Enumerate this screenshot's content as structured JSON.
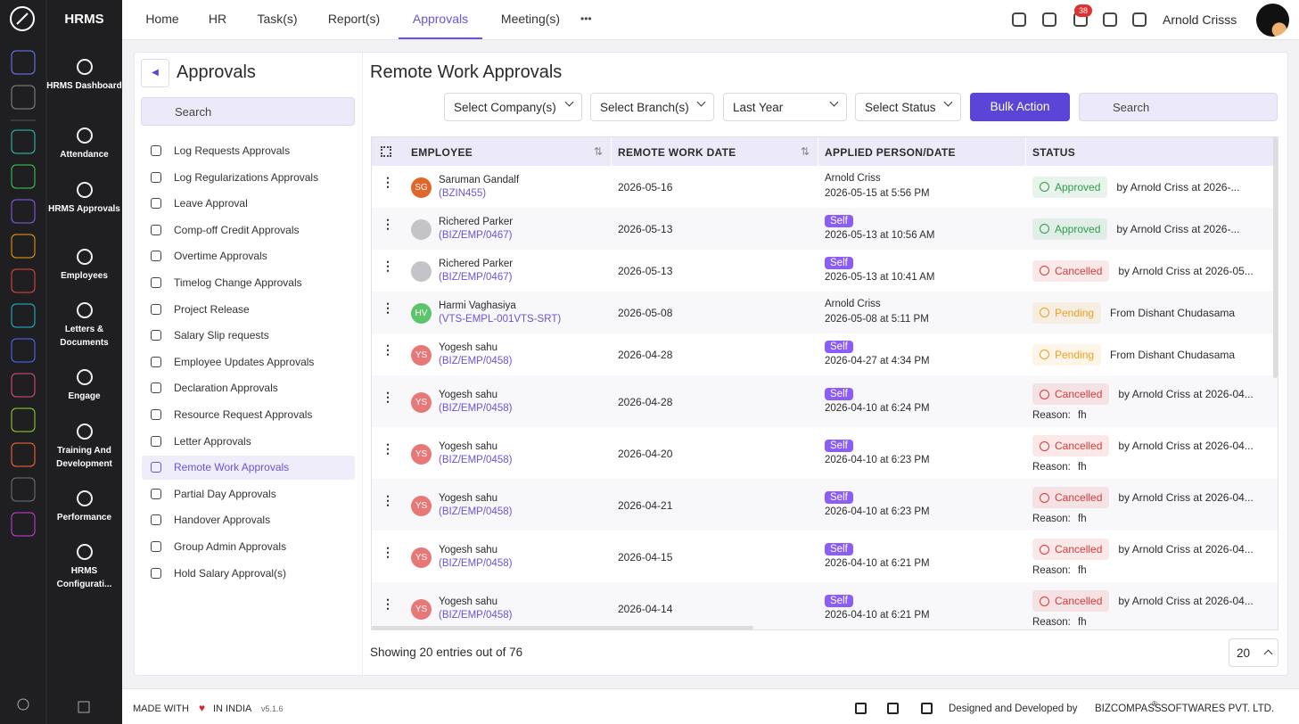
{
  "app": {
    "name": "HRMS"
  },
  "rail_nav": [
    "HRMS Dashboard",
    "Attendance",
    "HRMS Approvals",
    "Employees",
    "Letters & Documents",
    "Engage",
    "Training And Development",
    "Performance",
    "HRMS Configurati..."
  ],
  "top_nav": {
    "items": [
      "Home",
      "HR",
      "Task(s)",
      "Report(s)",
      "Approvals",
      "Meeting(s)"
    ],
    "active": 4,
    "more": "•••",
    "notification_count": 38,
    "user": "Arnold Crisss"
  },
  "sidebar": {
    "title": "Approvals",
    "search_placeholder": "Search",
    "active": 12,
    "items": [
      "Log Requests Approvals",
      "Log Regularizations Approvals",
      "Leave Approval",
      "Comp-off Credit Approvals",
      "Overtime Approvals",
      "Timelog Change Approvals",
      "Project Release",
      "Salary Slip requests",
      "Employee Updates Approvals",
      "Declaration Approvals",
      "Resource Request Approvals",
      "Letter Approvals",
      "Remote Work Approvals",
      "Partial Day Approvals",
      "Handover Approvals",
      "Group Admin Approvals",
      "Hold Salary Approval(s)"
    ]
  },
  "page": {
    "title": "Remote Work Approvals",
    "filters": [
      "Select Company(s)",
      "Select Branch(s)",
      "Last Year",
      "Select Status"
    ],
    "bulk_action": "Bulk Action",
    "search_placeholder": "Search"
  },
  "table": {
    "columns": [
      "EMPLOYEE",
      "REMOTE WORK DATE",
      "APPLIED PERSON/DATE",
      "STATUS"
    ],
    "reason_label": "Reason:",
    "rows": [
      {
        "initials": "SG",
        "avatar_color": "#e0662a",
        "name": "Saruman Gandalf",
        "code": "(BZIN455)",
        "date": "2026-05-16",
        "applied_by": "Arnold Criss",
        "self_badge": false,
        "applied_at": "2026-05-15 at 5:56 PM",
        "status": "Approved",
        "status_color": "#2e9d4c",
        "status_by": "by Arnold Criss at 2026-...",
        "reason": null
      },
      {
        "initials": null,
        "avatar_color": "#c4c4c8",
        "name": "Richered Parker",
        "code": "(BIZ/EMP/0467)",
        "date": "2026-05-13",
        "applied_by": "Self",
        "self_badge": true,
        "applied_at": "2026-05-13 at 10:56 AM",
        "status": "Approved",
        "status_color": "#2e9d4c",
        "status_by": "by Arnold Criss at 2026-...",
        "reason": null
      },
      {
        "initials": null,
        "avatar_color": "#c4c4c8",
        "name": "Richered Parker",
        "code": "(BIZ/EMP/0467)",
        "date": "2026-05-13",
        "applied_by": "Self",
        "self_badge": true,
        "applied_at": "2026-05-13 at 10:41 AM",
        "status": "Cancelled",
        "status_color": "#d93a3a",
        "status_by": "by Arnold Criss at 2026-05...",
        "reason": null
      },
      {
        "initials": "HV",
        "avatar_color": "#5cc46a",
        "name": "Harmi Vaghasiya",
        "code": "(VTS-EMPL-001VTS-SRT)",
        "date": "2026-05-08",
        "applied_by": "Arnold Criss",
        "self_badge": false,
        "applied_at": "2026-05-08 at 5:11 PM",
        "status": "Pending",
        "status_color": "#f0a020",
        "status_by": "From Dishant Chudasama",
        "reason": null
      },
      {
        "initials": "YS",
        "avatar_color": "#e87878",
        "name": "Yogesh sahu",
        "code": "(BIZ/EMP/0458)",
        "date": "2026-04-28",
        "applied_by": "Self",
        "self_badge": true,
        "applied_at": "2026-04-27 at 4:34 PM",
        "status": "Pending",
        "status_color": "#f0a020",
        "status_by": "From Dishant Chudasama",
        "reason": null
      },
      {
        "initials": "YS",
        "avatar_color": "#e87878",
        "name": "Yogesh sahu",
        "code": "(BIZ/EMP/0458)",
        "date": "2026-04-28",
        "applied_by": "Self",
        "self_badge": true,
        "applied_at": "2026-04-10 at 6:24 PM",
        "status": "Cancelled",
        "status_color": "#d93a3a",
        "status_by": "by Arnold Criss at 2026-04...",
        "reason": "fh"
      },
      {
        "initials": "YS",
        "avatar_color": "#e87878",
        "name": "Yogesh sahu",
        "code": "(BIZ/EMP/0458)",
        "date": "2026-04-20",
        "applied_by": "Self",
        "self_badge": true,
        "applied_at": "2026-04-10 at 6:23 PM",
        "status": "Cancelled",
        "status_color": "#d93a3a",
        "status_by": "by Arnold Criss at 2026-04...",
        "reason": "fh"
      },
      {
        "initials": "YS",
        "avatar_color": "#e87878",
        "name": "Yogesh sahu",
        "code": "(BIZ/EMP/0458)",
        "date": "2026-04-21",
        "applied_by": "Self",
        "self_badge": true,
        "applied_at": "2026-04-10 at 6:23 PM",
        "status": "Cancelled",
        "status_color": "#d93a3a",
        "status_by": "by Arnold Criss at 2026-04...",
        "reason": "fh"
      },
      {
        "initials": "YS",
        "avatar_color": "#e87878",
        "name": "Yogesh sahu",
        "code": "(BIZ/EMP/0458)",
        "date": "2026-04-15",
        "applied_by": "Self",
        "self_badge": true,
        "applied_at": "2026-04-10 at 6:21 PM",
        "status": "Cancelled",
        "status_color": "#d93a3a",
        "status_by": "by Arnold Criss at 2026-04...",
        "reason": "fh"
      },
      {
        "initials": "YS",
        "avatar_color": "#e87878",
        "name": "Yogesh sahu",
        "code": "(BIZ/EMP/0458)",
        "date": "2026-04-14",
        "applied_by": "Self",
        "self_badge": true,
        "applied_at": "2026-04-10 at 6:21 PM",
        "status": "Cancelled",
        "status_color": "#d93a3a",
        "status_by": "by Arnold Criss at 2026-04...",
        "reason": "fh"
      }
    ]
  },
  "pagination": {
    "summary": "Showing 20 entries out of 76",
    "page_size": "20"
  },
  "footer": {
    "made_with": "MADE WITH",
    "in_india": "IN INDIA",
    "version": "v5.1.6",
    "designed_by": "Designed and Developed by",
    "company": "BIZCOMPASS",
    "registered": "®",
    "company_suffix": "SOFTWARES PVT. LTD."
  }
}
